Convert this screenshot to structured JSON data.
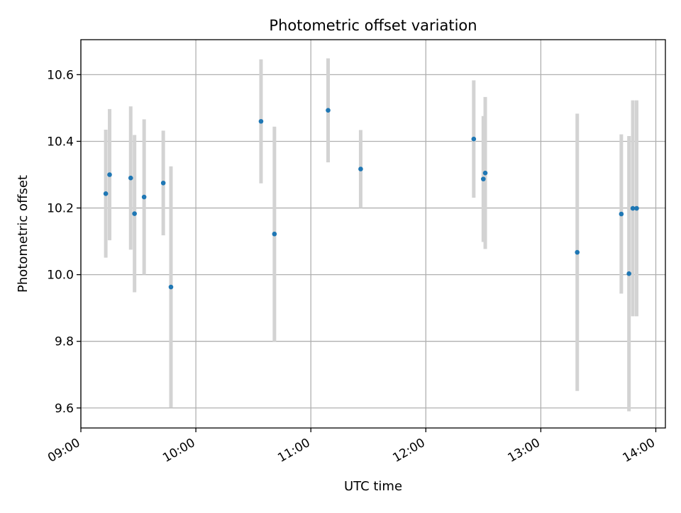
{
  "chart_data": {
    "type": "scatter",
    "title": "Photometric offset variation",
    "xlabel": "UTC time",
    "ylabel": "Photometric offset",
    "x_type": "time",
    "xlim": [
      "09:00",
      "14:05"
    ],
    "ylim": [
      9.54,
      10.705
    ],
    "x_ticks": [
      "09:00",
      "10:00",
      "11:00",
      "12:00",
      "13:00",
      "14:00"
    ],
    "y_ticks": [
      9.6,
      9.8,
      10.0,
      10.2,
      10.4,
      10.6
    ],
    "y_tick_labels": [
      "9.6",
      "9.8",
      "10.0",
      "10.2",
      "10.4",
      "10.6"
    ],
    "grid": true,
    "legend": "none",
    "colors": {
      "marker": "#1f77b4",
      "errorbar": "#d3d3d3",
      "grid": "#b0b0b0",
      "axes": "#000000"
    },
    "points": [
      {
        "t": "09:13",
        "y": 10.243,
        "err": 0.192
      },
      {
        "t": "09:15",
        "y": 10.3,
        "err": 0.197
      },
      {
        "t": "09:26",
        "y": 10.29,
        "err": 0.215
      },
      {
        "t": "09:28",
        "y": 10.183,
        "err": 0.236
      },
      {
        "t": "09:33",
        "y": 10.233,
        "err": 0.233
      },
      {
        "t": "09:43",
        "y": 10.275,
        "err": 0.157
      },
      {
        "t": "09:47",
        "y": 9.963,
        "err": 0.362
      },
      {
        "t": "10:34",
        "y": 10.46,
        "err": 0.186
      },
      {
        "t": "10:41",
        "y": 10.122,
        "err": 0.322
      },
      {
        "t": "11:09",
        "y": 10.493,
        "err": 0.156
      },
      {
        "t": "11:26",
        "y": 10.317,
        "err": 0.117
      },
      {
        "t": "12:25",
        "y": 10.407,
        "err": 0.176
      },
      {
        "t": "12:30",
        "y": 10.287,
        "err": 0.189
      },
      {
        "t": "12:31",
        "y": 10.305,
        "err": 0.228
      },
      {
        "t": "13:19",
        "y": 10.067,
        "err": 0.416
      },
      {
        "t": "13:42",
        "y": 10.182,
        "err": 0.239
      },
      {
        "t": "13:46",
        "y": 10.003,
        "err": 0.413
      },
      {
        "t": "13:48",
        "y": 10.199,
        "err": 0.324
      },
      {
        "t": "13:50",
        "y": 10.199,
        "err": 0.324
      }
    ]
  }
}
